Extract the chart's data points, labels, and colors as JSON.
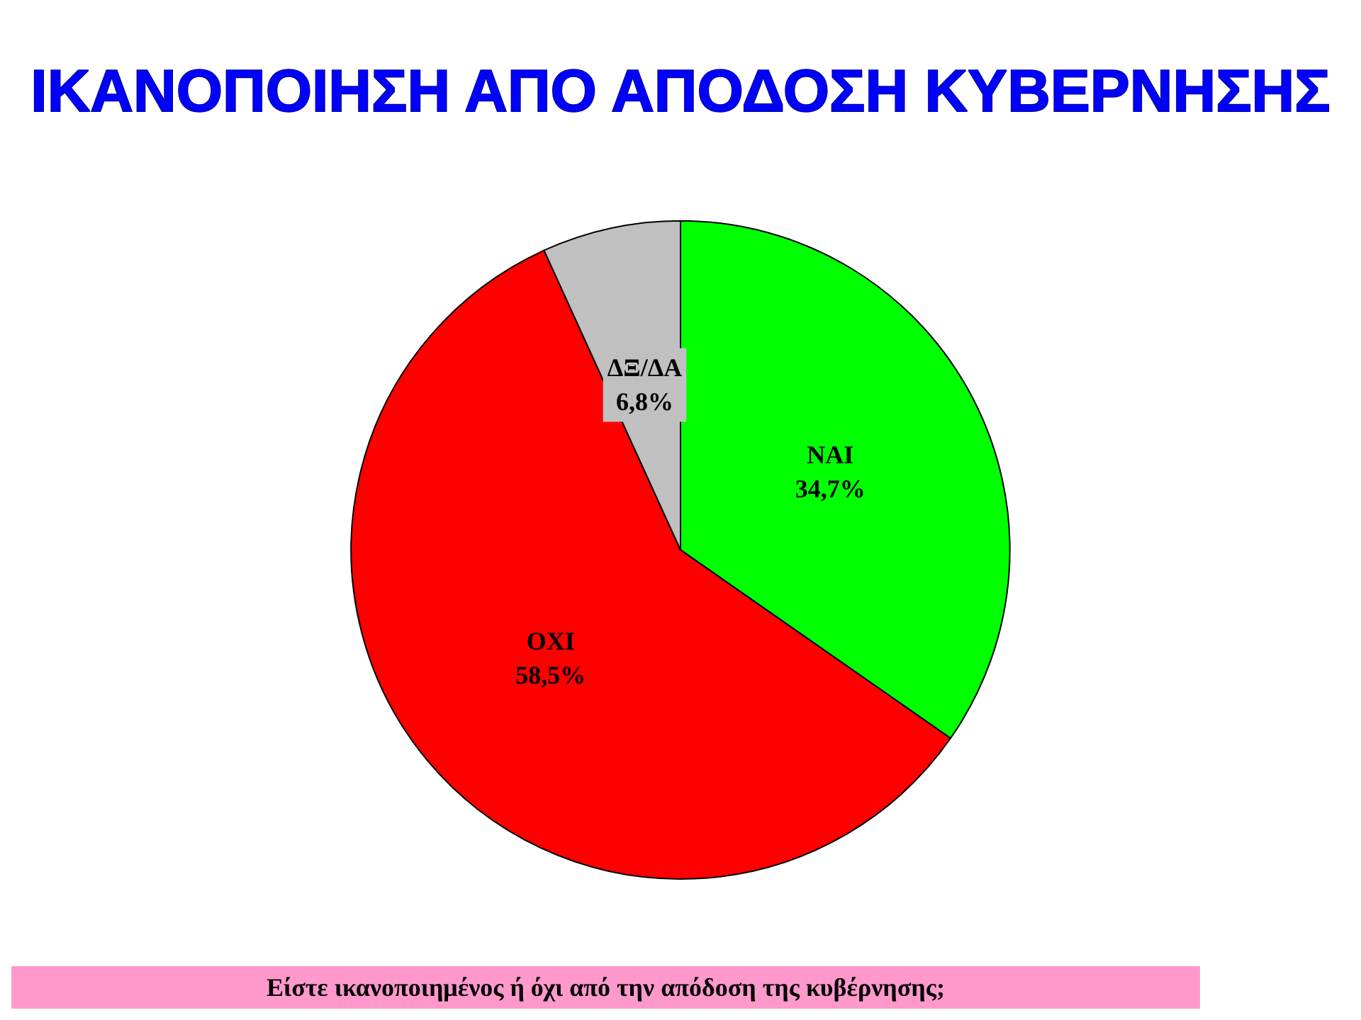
{
  "chart_data": {
    "type": "pie",
    "title": "ΙΚΑΝΟΠΟΙΗΣΗ ΑΠΟ ΑΠΟΔΟΣΗ ΚΥΒΕΡΝΗΣΗΣ",
    "categories": [
      "ΝΑΙ",
      "ΟΧΙ",
      "ΔΞ/ΔΑ"
    ],
    "values": [
      34.7,
      58.5,
      6.8
    ],
    "value_labels": [
      "34,7%",
      "58,5%",
      "6,8%"
    ],
    "colors": [
      "#00ff00",
      "#ff0000",
      "#c0c0c0"
    ],
    "annotations": [
      "Είστε ικανοποιημένος ή όχι από την απόδοση της κυβέρνησης;"
    ],
    "legend": false
  }
}
